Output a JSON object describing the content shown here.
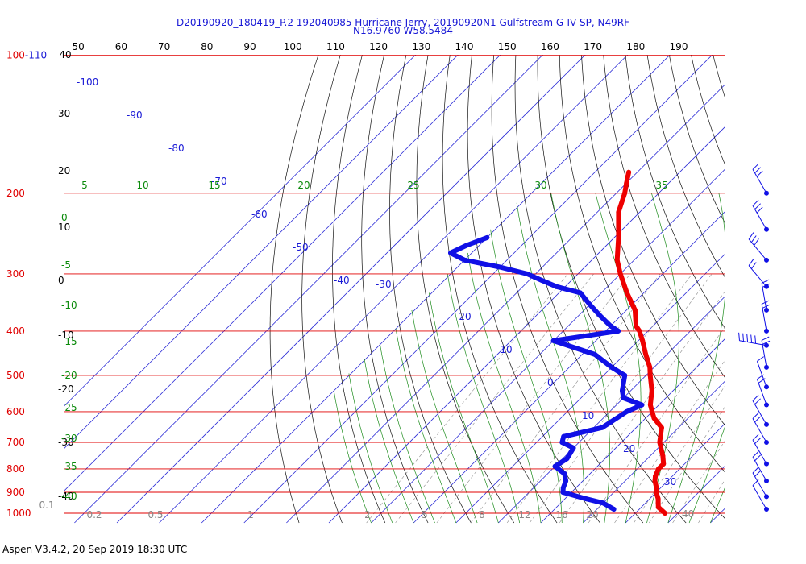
{
  "chart_data": {
    "type": "skew-t",
    "title_line1": "D20190920_180419_P.2 192040985 Hurricane Jerry, 20190920N1 Gulfstream G-IV SP, N49RF",
    "title_line2": "N16.9760 W58.5484",
    "footer": "Aspen V3.4.2, 20 Sep 2019  18:30 UTC",
    "top_axis_labels": [
      "40",
      "50",
      "60",
      "70",
      "80",
      "90",
      "100",
      "110",
      "120",
      "130",
      "140",
      "150",
      "160",
      "170",
      "180",
      "190"
    ],
    "pressure_labels": [
      "100",
      "200",
      "300",
      "400",
      "500",
      "600",
      "700",
      "800",
      "900",
      "1000"
    ],
    "pressure_label_100_suffix": "-110",
    "left_temp_labels": [
      "30",
      "20",
      "10",
      "0",
      "-10",
      "-20",
      "-30",
      "-40"
    ],
    "isotherm_labels": [
      "-100",
      "-90",
      "-80",
      "-70",
      "-60",
      "-50",
      "-40",
      "-30",
      "-20",
      "-10",
      "0",
      "10",
      "20",
      "30",
      "40"
    ],
    "dry_adiabat_labels": [
      "0",
      "-5",
      "-10",
      "-15",
      "-20",
      "-25",
      "-30",
      "-35",
      "-40"
    ],
    "theta_top_labels": [
      "5",
      "10",
      "15",
      "20",
      "25",
      "30",
      "35"
    ],
    "mixing_ratio_labels": [
      "0.1",
      "0.2",
      "0.5",
      "1",
      "2",
      "5",
      "8",
      "12",
      "16",
      "20"
    ],
    "temperature_profile": [
      [
        180,
        -62
      ],
      [
        190,
        -60
      ],
      [
        200,
        -58
      ],
      [
        220,
        -55
      ],
      [
        250,
        -49
      ],
      [
        280,
        -44
      ],
      [
        300,
        -40
      ],
      [
        330,
        -34
      ],
      [
        360,
        -28
      ],
      [
        390,
        -24
      ],
      [
        400,
        -22
      ],
      [
        420,
        -19
      ],
      [
        450,
        -15
      ],
      [
        480,
        -11
      ],
      [
        500,
        -9
      ],
      [
        540,
        -5
      ],
      [
        580,
        -2
      ],
      [
        600,
        0
      ],
      [
        620,
        2
      ],
      [
        650,
        6
      ],
      [
        700,
        9
      ],
      [
        750,
        13
      ],
      [
        780,
        15
      ],
      [
        800,
        15
      ],
      [
        830,
        16
      ],
      [
        850,
        17
      ],
      [
        880,
        19
      ],
      [
        900,
        20
      ],
      [
        930,
        22
      ],
      [
        950,
        23
      ],
      [
        970,
        24
      ],
      [
        1000,
        27
      ]
    ],
    "dewpoint_profile": [
      [
        250,
        -80
      ],
      [
        260,
        -83
      ],
      [
        270,
        -85
      ],
      [
        280,
        -80
      ],
      [
        290,
        -70
      ],
      [
        300,
        -62
      ],
      [
        310,
        -57
      ],
      [
        320,
        -52
      ],
      [
        330,
        -45
      ],
      [
        350,
        -40
      ],
      [
        370,
        -35
      ],
      [
        390,
        -30
      ],
      [
        400,
        -27
      ],
      [
        420,
        -40
      ],
      [
        450,
        -27
      ],
      [
        480,
        -20
      ],
      [
        500,
        -15
      ],
      [
        540,
        -12
      ],
      [
        560,
        -10
      ],
      [
        580,
        -4
      ],
      [
        600,
        -6
      ],
      [
        650,
        -8
      ],
      [
        680,
        -15
      ],
      [
        700,
        -14
      ],
      [
        720,
        -10
      ],
      [
        760,
        -9
      ],
      [
        790,
        -10
      ],
      [
        820,
        -6
      ],
      [
        850,
        -4
      ],
      [
        880,
        -3
      ],
      [
        900,
        -2
      ],
      [
        930,
        5
      ],
      [
        950,
        10
      ],
      [
        980,
        14
      ]
    ],
    "wind_profile": [
      [
        200,
        330,
        30
      ],
      [
        240,
        330,
        25
      ],
      [
        280,
        320,
        25
      ],
      [
        320,
        320,
        20
      ],
      [
        360,
        350,
        15
      ],
      [
        400,
        350,
        15
      ],
      [
        430,
        280,
        45
      ],
      [
        480,
        350,
        15
      ],
      [
        530,
        340,
        10
      ],
      [
        580,
        340,
        15
      ],
      [
        640,
        330,
        15
      ],
      [
        700,
        330,
        15
      ],
      [
        780,
        330,
        15
      ],
      [
        850,
        330,
        15
      ],
      [
        920,
        330,
        15
      ],
      [
        980,
        330,
        10
      ]
    ]
  }
}
